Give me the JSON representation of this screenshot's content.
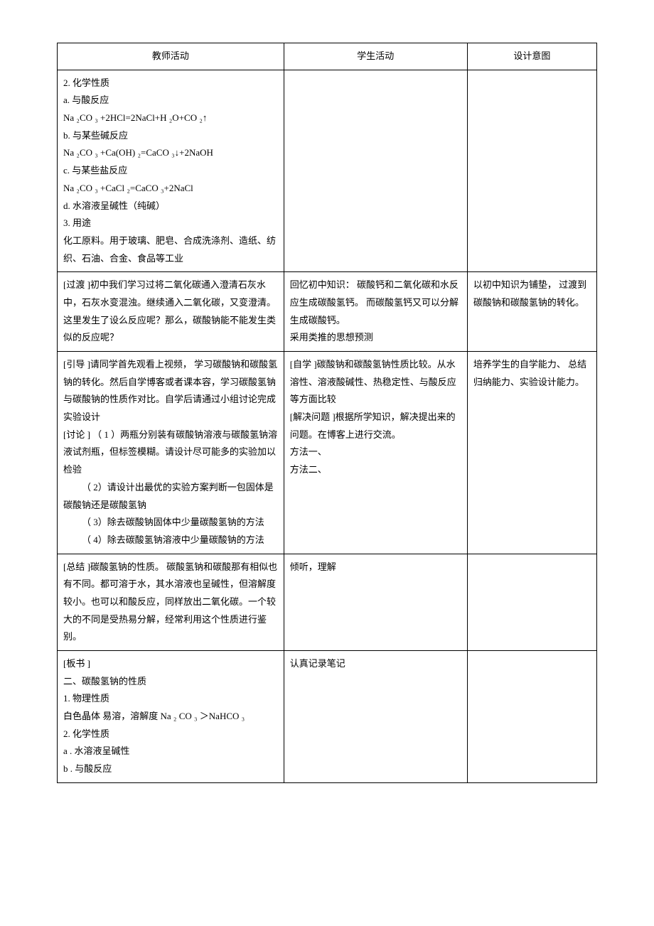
{
  "header": {
    "col1": "教师活动",
    "col2": "学生活动",
    "col3": "设计意图"
  },
  "row1": {
    "teacher": {
      "l1": "2.   化学性质",
      "l2": "a.   与酸反应",
      "l3": "Na ₂CO ₃ +2HCl=2NaCl+H   ₂O+CO ₂↑",
      "l4": "b.   与某些碱反应",
      "l5": "Na ₂CO ₃ +Ca(OH) ₂=CaCO ₃↓+2NaOH",
      "l6": "c.   与某些盐反应",
      "l7": "Na ₂CO ₃ +CaCl ₂=CaCO ₃+2NaCl",
      "l8": "d.   水溶液呈碱性（纯碱）",
      "l9": "3.   用途",
      "l10": "化工原料。用于玻璃、肥皂、合成洗涤剂、造纸、纺织、石油、合金、食品等工业"
    }
  },
  "row2": {
    "teacher": "[过渡 ]初中我们学习过将二氧化碳通入澄清石灰水中，石灰水变混浊。继续通入二氧化碳，又变澄清。这里发生了设么反应呢？那么，碳酸钠能不能发生类似的反应呢？",
    "student": {
      "l1": "回忆初中知识：   碳酸钙和二氧化碳和水反应生成碳酸氢钙。   而碳酸氢钙又可以分解生成碳酸钙。",
      "l2": "采用类推的思想预测"
    },
    "intent": "以初中知识为铺垫，   过渡到碳酸钠和碳酸氢钠的转化。"
  },
  "row3": {
    "teacher": {
      "l1": "[引导 ]请同学首先观看上视频，   学习碳酸钠和碳酸氢钠的转化。然后自学博客或者课本容，学习碳酸氢钠与碳酸钠的性质作对比。自学后请通过小组讨论完成实验设计",
      "l2": "[讨论 ] （ 1 ）两瓶分别装有碳酸钠溶液与碳酸氢钠溶液试剂瓶，但标签模糊。请设计尽可能多的实验加以检验",
      "l3": "（ 2）请设计出最优的实验方案判断一包固体是碳酸钠还是碳酸氢钠",
      "l4": "（ 3）除去碳酸钠固体中少量碳酸氢钠的方法",
      "l5": "（ 4）除去碳酸氢钠溶液中少量碳酸钠的方法"
    },
    "student": {
      "l1": "[自学 ]碳酸钠和碳酸氢钠性质比较。从水溶性、溶液酸碱性、热稳定性、与酸反应等方面比较",
      "l2": "[解决问题 ]根据所学知识，解决提出来的问题。在博客上进行交流。",
      "l3": "方法一、",
      "l4": "方法二、"
    },
    "intent": "培养学生的自学能力、   总结归纳能力、实验设计能力。"
  },
  "row4": {
    "teacher": "[总结 ]碳酸氢钠的性质。   碳酸氢钠和碳酸那有相似也有不同。都可溶于水，其水溶液也呈碱性，但溶解度较小。也可以和酸反应，同样放出二氧化碳。一个较大的不同是受热易分解，经常利用这个性质进行鉴别。",
    "student": "倾听，理解"
  },
  "row5": {
    "teacher": {
      "l1": "[板书 ]",
      "l2": "二、碳酸氢钠的性质",
      "l3": "1.   物理性质",
      "l4": "白色晶体   易溶，溶解度  Na ₂ CO ₃ ＞NaHCO ₃",
      "l5": "2.   化学性质",
      "l6": "a . 水溶液呈碱性",
      "l7": "b . 与酸反应"
    },
    "student": "认真记录笔记"
  }
}
